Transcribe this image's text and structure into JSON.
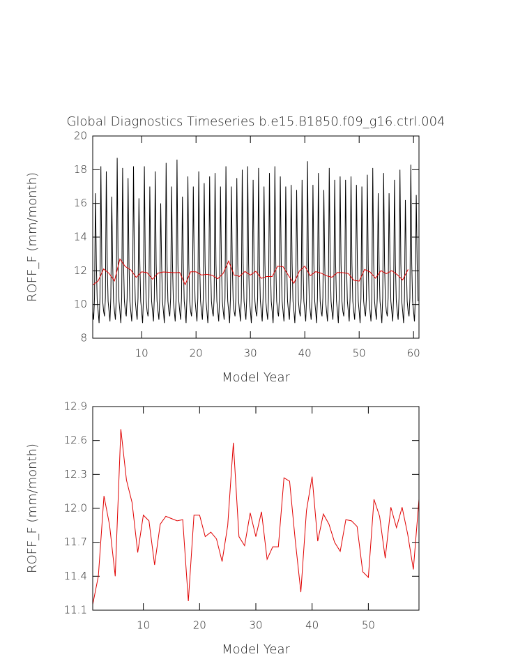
{
  "chart_data": [
    {
      "type": "line",
      "title": "Global Diagnostics Timeseries b.e15.B1850.f09_g16.ctrl.004",
      "xlabel": "Model Year",
      "ylabel": "ROFF_F (mm/month)",
      "xlim": [
        1,
        61
      ],
      "ylim": [
        8,
        20
      ],
      "xticks": [
        10,
        20,
        30,
        40,
        50,
        60
      ],
      "yticks": [
        8,
        10,
        12,
        14,
        16,
        18,
        20
      ],
      "series": [
        {
          "color": "#000000",
          "x": [
            1,
            1.17,
            1.33,
            1.5,
            1.67,
            1.83,
            2,
            2.17,
            2.33,
            2.5,
            2.67,
            2.83,
            3,
            3.17,
            3.33,
            3.5,
            3.67,
            3.83,
            4,
            4.17,
            4.33,
            4.5,
            4.67,
            4.83,
            5,
            5.17,
            5.33,
            5.5,
            5.67,
            5.83,
            6,
            6.17,
            6.33,
            6.5,
            6.67,
            6.83,
            7,
            7.17,
            7.33,
            7.5,
            7.67,
            7.83,
            8,
            8.17,
            8.33,
            8.5,
            8.67,
            8.83,
            9,
            9.17,
            9.33,
            9.5,
            9.67,
            9.83,
            10,
            10.17,
            10.33,
            10.5,
            10.67,
            10.83,
            11,
            11.17,
            11.33,
            11.5,
            11.67,
            11.83,
            12,
            12.17,
            12.33,
            12.5,
            12.67,
            12.83,
            13,
            13.17,
            13.33,
            13.5,
            13.67,
            13.83,
            14,
            14.17,
            14.33,
            14.5,
            14.67,
            14.83,
            15,
            15.17,
            15.33,
            15.5,
            15.67,
            15.83,
            16,
            16.17,
            16.33,
            16.5,
            16.67,
            16.83,
            17,
            17.17,
            17.33,
            17.5,
            17.67,
            17.83,
            18,
            18.17,
            18.33,
            18.5,
            18.67,
            18.83,
            19,
            19.17,
            19.33,
            19.5,
            19.67,
            19.83,
            20,
            20.17,
            20.33,
            20.5,
            20.67,
            20.83,
            21,
            21.17,
            21.33,
            21.5,
            21.67,
            21.83,
            22,
            22.17,
            22.33,
            22.5,
            22.67,
            22.83,
            23,
            23.17,
            23.33,
            23.5,
            23.67,
            23.83,
            24,
            24.17,
            24.33,
            24.5,
            24.67,
            24.83,
            25,
            25.17,
            25.33,
            25.5,
            25.67,
            25.83,
            26,
            26.17,
            26.33,
            26.5,
            26.67,
            26.83,
            27,
            27.17,
            27.33,
            27.5,
            27.67,
            27.83,
            28,
            28.17,
            28.33,
            28.5,
            28.67,
            28.83,
            29,
            29.17,
            29.33,
            29.5,
            29.67,
            29.83,
            30,
            30.17,
            30.33,
            30.5,
            30.67,
            30.83,
            31,
            31.17,
            31.33,
            31.5,
            31.67,
            31.83,
            32,
            32.17,
            32.33,
            32.5,
            32.67,
            32.83,
            33,
            33.17,
            33.33,
            33.5,
            33.67,
            33.83,
            34,
            34.17,
            34.33,
            34.5,
            34.67,
            34.83,
            35,
            35.17,
            35.33,
            35.5,
            35.67,
            35.83,
            36,
            36.17,
            36.33,
            36.5,
            36.67,
            36.83,
            37,
            37.17,
            37.33,
            37.5,
            37.67,
            37.83,
            38,
            38.17,
            38.33,
            38.5,
            38.67,
            38.83,
            39,
            39.17,
            39.33,
            39.5,
            39.67,
            39.83,
            40,
            40.17,
            40.33,
            40.5,
            40.67,
            40.83,
            41,
            41.17,
            41.33,
            41.5,
            41.67,
            41.83,
            42,
            42.17,
            42.33,
            42.5,
            42.67,
            42.83,
            43,
            43.17,
            43.33,
            43.5,
            43.67,
            43.83,
            44,
            44.17,
            44.33,
            44.5,
            44.67,
            44.83,
            45,
            45.17,
            45.33,
            45.5,
            45.67,
            45.83,
            46,
            46.17,
            46.33,
            46.5,
            46.67,
            46.83,
            47,
            47.17,
            47.33,
            47.5,
            47.67,
            47.83,
            48,
            48.17,
            48.33,
            48.5,
            48.67,
            48.83,
            49,
            49.17,
            49.33,
            49.5,
            49.67,
            49.83,
            50,
            50.17,
            50.33,
            50.5,
            50.67,
            50.83,
            51,
            51.17,
            51.33,
            51.5,
            51.67,
            51.83,
            52,
            52.17,
            52.33,
            52.5,
            52.67,
            52.83,
            53,
            53.17,
            53.33,
            53.5,
            53.67,
            53.83,
            54,
            54.17,
            54.33,
            54.5,
            54.67,
            54.83,
            55,
            55.17,
            55.33,
            55.5,
            55.67,
            55.83,
            56,
            56.17,
            56.33,
            56.5,
            56.67,
            56.83,
            57,
            57.17,
            57.33,
            57.5,
            57.67,
            57.83,
            58,
            58.17,
            58.33,
            58.5,
            58.67,
            58.83,
            59,
            59.17,
            59.33,
            59.5,
            59.67,
            59.83,
            60,
            60.17,
            60.33,
            60.5,
            60.67,
            60.83
          ],
          "values": [
            9.6,
            9.1,
            10.4,
            16.6,
            12.4,
            10.2,
            9.6,
            8.9,
            10.4,
            18.2,
            12.4,
            10.2,
            9.6,
            9.3,
            10.4,
            17.9,
            12.4,
            10.2,
            9.6,
            9.0,
            10.4,
            16.4,
            12.4,
            10.2,
            9.6,
            9.1,
            10.4,
            18.7,
            12.4,
            10.2,
            9.6,
            8.9,
            10.4,
            18.1,
            12.4,
            10.2,
            9.6,
            9.3,
            10.4,
            17.5,
            12.4,
            10.2,
            9.6,
            9.0,
            10.4,
            18.2,
            12.4,
            10.2,
            9.6,
            9.1,
            10.4,
            16.3,
            12.4,
            10.2,
            9.6,
            8.9,
            10.4,
            18.2,
            12.4,
            10.2,
            9.6,
            9.3,
            10.4,
            17.0,
            12.4,
            10.2,
            9.6,
            9.0,
            10.4,
            17.9,
            12.4,
            10.2,
            9.6,
            9.1,
            10.4,
            16.0,
            12.4,
            10.2,
            9.6,
            8.9,
            10.4,
            18.4,
            12.4,
            10.2,
            9.6,
            9.3,
            10.4,
            17.0,
            12.4,
            10.2,
            9.6,
            9.0,
            10.4,
            18.6,
            12.4,
            10.2,
            9.6,
            9.1,
            10.4,
            16.4,
            12.4,
            10.2,
            9.6,
            8.9,
            10.4,
            17.6,
            12.4,
            10.2,
            9.6,
            9.3,
            10.4,
            17.0,
            12.4,
            10.2,
            9.6,
            9.0,
            10.4,
            17.9,
            12.4,
            10.2,
            9.6,
            9.1,
            10.4,
            17.2,
            12.4,
            10.2,
            9.6,
            8.9,
            10.4,
            17.6,
            12.4,
            10.2,
            9.6,
            9.3,
            10.4,
            17.8,
            12.4,
            10.2,
            9.6,
            9.0,
            10.4,
            17.0,
            12.4,
            10.2,
            9.6,
            9.1,
            10.4,
            18.2,
            12.4,
            10.2,
            9.6,
            8.9,
            10.4,
            17.0,
            12.4,
            10.2,
            9.6,
            9.3,
            10.4,
            17.5,
            12.4,
            10.2,
            9.6,
            9.0,
            10.4,
            18.0,
            12.4,
            10.2,
            9.6,
            9.1,
            10.4,
            18.2,
            12.4,
            10.2,
            9.6,
            8.9,
            10.4,
            17.4,
            12.4,
            10.2,
            9.6,
            9.3,
            10.4,
            18.1,
            12.4,
            10.2,
            9.6,
            9.0,
            10.4,
            17.0,
            12.4,
            10.2,
            9.6,
            9.1,
            10.4,
            17.8,
            12.4,
            10.2,
            9.6,
            8.9,
            10.4,
            18.2,
            12.4,
            10.2,
            9.6,
            9.3,
            10.4,
            17.6,
            12.4,
            10.2,
            9.6,
            9.0,
            10.4,
            17.0,
            12.4,
            10.2,
            9.6,
            9.1,
            10.4,
            17.1,
            12.4,
            10.2,
            9.6,
            8.9,
            10.4,
            16.8,
            12.4,
            10.2,
            9.6,
            9.3,
            10.4,
            17.4,
            12.4,
            10.2,
            9.6,
            9.0,
            10.4,
            18.5,
            12.4,
            10.2,
            9.6,
            9.1,
            10.4,
            17.1,
            12.4,
            10.2,
            9.6,
            8.9,
            10.4,
            17.8,
            12.4,
            10.2,
            9.6,
            9.3,
            10.4,
            16.8,
            12.4,
            10.2,
            9.6,
            9.0,
            10.4,
            18.1,
            12.4,
            10.2,
            9.6,
            9.1,
            10.4,
            17.4,
            12.4,
            10.2,
            9.6,
            8.9,
            10.4,
            17.6,
            12.4,
            10.2,
            9.6,
            9.3,
            10.4,
            17.4,
            12.4,
            10.2,
            9.6,
            9.0,
            10.4,
            17.6,
            12.4,
            10.2,
            9.6,
            9.1,
            10.4,
            17.1,
            12.4,
            10.2,
            9.6,
            8.9,
            10.4,
            17.0,
            12.4,
            10.2,
            9.6,
            9.3,
            10.4,
            17.7,
            12.4,
            10.2,
            9.6,
            9.0,
            10.4,
            18.1,
            12.4,
            10.2,
            9.6,
            9.1,
            10.4,
            16.6,
            12.4,
            10.2,
            9.6,
            8.9,
            10.4,
            17.8,
            12.4,
            10.2,
            9.6,
            9.3,
            10.4,
            16.6,
            12.4,
            10.2,
            9.6,
            9.0,
            10.4,
            17.4,
            12.4,
            10.2,
            9.6,
            9.1,
            10.4,
            18.0,
            12.4,
            10.2,
            9.6,
            8.9,
            10.4,
            16.2,
            12.4,
            10.2,
            9.6,
            9.3,
            10.4,
            18.3,
            12.4,
            10.2,
            9.6,
            9.0,
            10.4,
            16.5,
            12.4,
            10.2
          ]
        },
        {
          "color": "#e00000",
          "x": [
            1,
            2,
            3,
            4,
            5,
            6,
            7,
            8,
            9,
            10,
            11,
            12,
            13,
            14,
            15,
            16,
            17,
            18,
            19,
            20,
            21,
            22,
            23,
            24,
            25,
            26,
            27,
            28,
            29,
            30,
            31,
            32,
            33,
            34,
            35,
            36,
            37,
            38,
            39,
            40,
            41,
            42,
            43,
            44,
            45,
            46,
            47,
            48,
            49,
            50,
            51,
            52,
            53,
            54,
            55,
            56,
            57,
            58,
            59
          ],
          "values": [
            11.15,
            11.4,
            12.11,
            11.85,
            11.4,
            12.7,
            12.25,
            12.05,
            11.61,
            11.94,
            11.89,
            11.5,
            11.86,
            11.93,
            11.91,
            11.89,
            11.9,
            11.18,
            11.94,
            11.94,
            11.75,
            11.79,
            11.73,
            11.53,
            11.85,
            12.58,
            11.75,
            11.67,
            11.96,
            11.75,
            11.97,
            11.55,
            11.66,
            11.66,
            12.27,
            12.24,
            11.72,
            11.26,
            11.98,
            12.28,
            11.71,
            11.95,
            11.86,
            11.7,
            11.62,
            11.9,
            11.89,
            11.84,
            11.44,
            11.39,
            12.08,
            11.93,
            11.56,
            12.01,
            11.83,
            12.01,
            11.77,
            11.46,
            12.08
          ]
        }
      ]
    },
    {
      "type": "line",
      "xlabel": "Model Year",
      "ylabel": "ROFF_F (mm/month)",
      "xlim": [
        1,
        59
      ],
      "ylim": [
        11.1,
        12.9
      ],
      "xticks": [
        10,
        20,
        30,
        40,
        50
      ],
      "yticks": [
        11.1,
        11.4,
        11.7,
        {
          "value": 12,
          "label": "12.0"
        },
        12.3,
        12.6,
        12.9
      ],
      "series": [
        {
          "color": "#e00000",
          "x": [
            1,
            2,
            3,
            4,
            5,
            6,
            7,
            8,
            9,
            10,
            11,
            12,
            13,
            14,
            15,
            16,
            17,
            18,
            19,
            20,
            21,
            22,
            23,
            24,
            25,
            26,
            27,
            28,
            29,
            30,
            31,
            32,
            33,
            34,
            35,
            36,
            37,
            38,
            39,
            40,
            41,
            42,
            43,
            44,
            45,
            46,
            47,
            48,
            49,
            50,
            51,
            52,
            53,
            54,
            55,
            56,
            57,
            58,
            59
          ],
          "values": [
            11.15,
            11.4,
            12.11,
            11.85,
            11.4,
            12.7,
            12.25,
            12.05,
            11.61,
            11.94,
            11.89,
            11.5,
            11.86,
            11.93,
            11.91,
            11.89,
            11.9,
            11.18,
            11.94,
            11.94,
            11.75,
            11.79,
            11.73,
            11.53,
            11.85,
            12.58,
            11.75,
            11.67,
            11.96,
            11.75,
            11.97,
            11.55,
            11.66,
            11.66,
            12.27,
            12.24,
            11.72,
            11.26,
            11.98,
            12.28,
            11.71,
            11.95,
            11.86,
            11.7,
            11.62,
            11.9,
            11.89,
            11.84,
            11.44,
            11.39,
            12.08,
            11.93,
            11.56,
            12.01,
            11.83,
            12.01,
            11.77,
            11.46,
            12.08
          ]
        }
      ]
    }
  ]
}
